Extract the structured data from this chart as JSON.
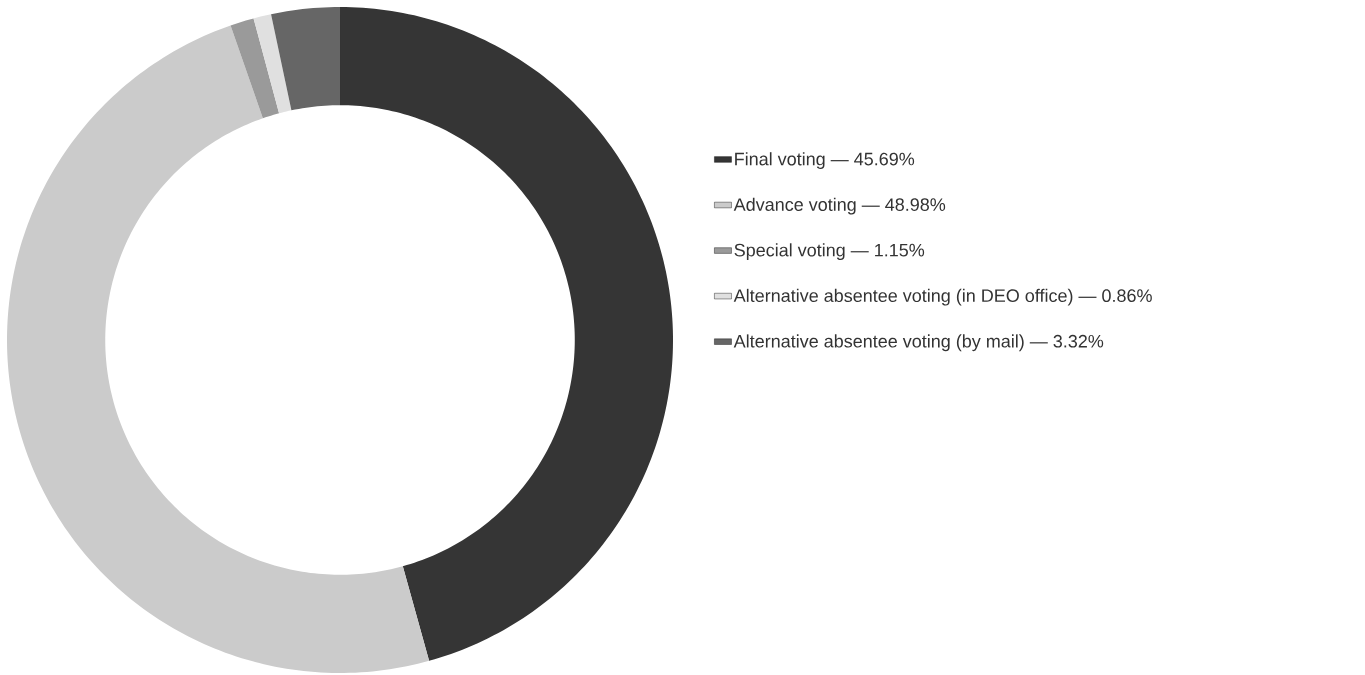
{
  "chart_data": {
    "type": "donut",
    "categories": [
      "Final voting — 45.69%",
      "Advance voting — 48.98%",
      "Special voting — 1.15%",
      "Alternative absentee voting (in DEO office) — 0.86%",
      "Alternative absentee voting (by mail) — 3.32%"
    ],
    "values": [
      45.69,
      48.98,
      1.15,
      0.86,
      3.32
    ],
    "colors": [
      "#353535",
      "#cbcbcb",
      "#9a9a9a",
      "#e0e0e0",
      "#666666"
    ],
    "legend": "right"
  }
}
